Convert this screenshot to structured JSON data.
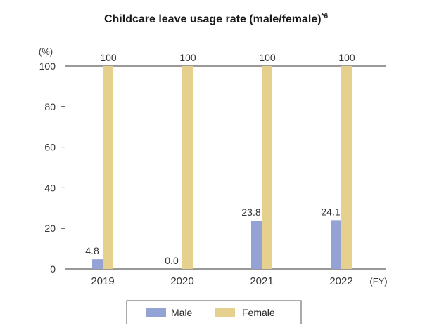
{
  "chart_data": {
    "type": "bar",
    "title": "Childcare leave usage rate (male/female)",
    "title_superscript": "*6",
    "ylabel": "(%)",
    "xunit": "(FY)",
    "categories": [
      "2019",
      "2020",
      "2021",
      "2022"
    ],
    "ylim": [
      0,
      100
    ],
    "yticks": [
      "0",
      "20",
      "40",
      "60",
      "80",
      "100"
    ],
    "series": [
      {
        "name": "Male",
        "values": [
          4.8,
          0.0,
          23.8,
          24.1
        ],
        "labels": [
          "4.8",
          "0.0",
          "23.8",
          "24.1"
        ],
        "color": "#94a2d4"
      },
      {
        "name": "Female",
        "values": [
          100,
          100,
          100,
          100
        ],
        "labels": [
          "100",
          "100",
          "100",
          "100"
        ],
        "color": "#e6d08d"
      }
    ],
    "legend_position": "bottom",
    "grid": false
  }
}
